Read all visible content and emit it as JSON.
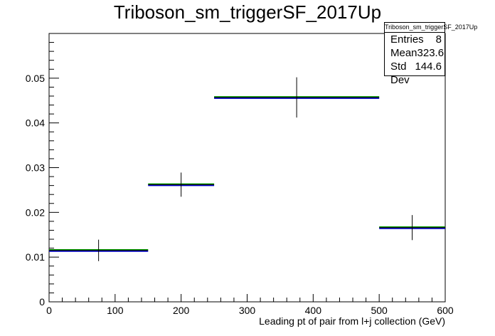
{
  "chart_data": {
    "type": "histogram",
    "title": "Triboson_sm_triggerSF_2017Up",
    "xlabel": "Leading pt of pair from l+j collection (GeV)",
    "ylabel": "",
    "xlim": [
      0,
      600
    ],
    "ylim": [
      0,
      0.06
    ],
    "x_ticks": [
      0,
      100,
      200,
      300,
      400,
      500,
      600
    ],
    "y_ticks": [
      0,
      0.01,
      0.02,
      0.03,
      0.04,
      0.05
    ],
    "grid": false,
    "bins": [
      {
        "low": 0,
        "high": 150,
        "center": 75,
        "value": 0.0115,
        "error": 0.0024
      },
      {
        "low": 150,
        "high": 250,
        "center": 200,
        "value": 0.0262,
        "error": 0.0027
      },
      {
        "low": 250,
        "high": 500,
        "center": 375,
        "value": 0.0457,
        "error": 0.0045
      },
      {
        "low": 500,
        "high": 600,
        "center": 550,
        "value": 0.0166,
        "error": 0.0028
      }
    ],
    "series_colors": [
      "#0000cc",
      "#009900",
      "#000000"
    ],
    "stats": {
      "name": "Triboson_sm_triggerSF_2017Up",
      "rows": [
        {
          "label": "Entries",
          "value": "8"
        },
        {
          "label": "Mean",
          "value": "323.6"
        },
        {
          "label": "Std Dev",
          "value": "144.6"
        }
      ]
    }
  }
}
